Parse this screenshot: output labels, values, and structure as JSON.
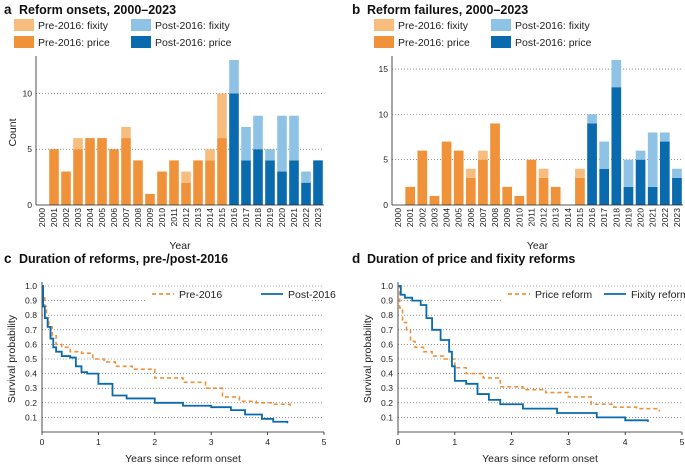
{
  "chart_data": [
    {
      "panel_label": "a",
      "type": "bar",
      "stacked": true,
      "title": "Reform onsets, 2000–2023",
      "xlabel": "Year",
      "ylabel": "Count",
      "ylim": [
        0,
        13
      ],
      "yticks": [
        0,
        5,
        10
      ],
      "grid": true,
      "categories": [
        "2000",
        "2001",
        "2002",
        "2003",
        "2004",
        "2005",
        "2006",
        "2007",
        "2008",
        "2009",
        "2010",
        "2011",
        "2012",
        "2013",
        "2014",
        "2015",
        "2016",
        "2017",
        "2018",
        "2019",
        "2020",
        "2021",
        "2022",
        "2023"
      ],
      "series": [
        {
          "name": "Pre-2016: price",
          "color": "#f0923a",
          "values": [
            0,
            5,
            3,
            5,
            6,
            6,
            5,
            6,
            4,
            1,
            3,
            4,
            2,
            4,
            4,
            6,
            0,
            0,
            0,
            0,
            0,
            0,
            0,
            0
          ]
        },
        {
          "name": "Pre-2016: fixity",
          "color": "#f7bd7f",
          "values": [
            0,
            0,
            0,
            1,
            0,
            0,
            0,
            1,
            0,
            0,
            0,
            0,
            1,
            0,
            1,
            4,
            0,
            0,
            0,
            0,
            0,
            0,
            0,
            0
          ]
        },
        {
          "name": "Post-2016: price",
          "color": "#0a6aae",
          "values": [
            0,
            0,
            0,
            0,
            0,
            0,
            0,
            0,
            0,
            0,
            0,
            0,
            0,
            0,
            0,
            0,
            10,
            4,
            5,
            4,
            3,
            4,
            2,
            4
          ]
        },
        {
          "name": "Post-2016: fixity",
          "color": "#8ec3e6",
          "values": [
            0,
            0,
            0,
            0,
            0,
            0,
            0,
            0,
            0,
            0,
            0,
            0,
            0,
            0,
            0,
            0,
            3,
            3,
            3,
            1,
            5,
            4,
            1,
            0
          ]
        }
      ],
      "legend": [
        "Pre-2016: fixity",
        "Pre-2016: price",
        "Post-2016: fixity",
        "Post-2016: price"
      ]
    },
    {
      "panel_label": "b",
      "type": "bar",
      "stacked": true,
      "title": "Reform failures, 2000–2023",
      "xlabel": "Year",
      "ylabel": "",
      "ylim": [
        0,
        16
      ],
      "yticks": [
        0,
        5,
        10,
        15
      ],
      "grid": true,
      "categories": [
        "2000",
        "2001",
        "2002",
        "2003",
        "2004",
        "2005",
        "2006",
        "2007",
        "2008",
        "2009",
        "2010",
        "2011",
        "2012",
        "2013",
        "2014",
        "2015",
        "2016",
        "2017",
        "2018",
        "2019",
        "2020",
        "2021",
        "2022",
        "2023"
      ],
      "series": [
        {
          "name": "Pre-2016: price",
          "color": "#f0923a",
          "values": [
            0,
            2,
            6,
            1,
            7,
            6,
            3,
            5,
            9,
            2,
            1,
            5,
            3,
            2,
            0,
            3,
            0,
            0,
            0,
            0,
            0,
            0,
            0,
            0
          ]
        },
        {
          "name": "Pre-2016: fixity",
          "color": "#f7bd7f",
          "values": [
            0,
            0,
            0,
            0,
            0,
            0,
            1,
            1,
            0,
            0,
            0,
            0,
            1,
            0,
            0,
            1,
            0,
            0,
            0,
            0,
            0,
            0,
            0,
            0
          ]
        },
        {
          "name": "Post-2016: price",
          "color": "#0a6aae",
          "values": [
            0,
            0,
            0,
            0,
            0,
            0,
            0,
            0,
            0,
            0,
            0,
            0,
            0,
            0,
            0,
            0,
            9,
            4,
            13,
            2,
            5,
            2,
            7,
            3
          ]
        },
        {
          "name": "Post-2016: fixity",
          "color": "#8ec3e6",
          "values": [
            0,
            0,
            0,
            0,
            0,
            0,
            0,
            0,
            0,
            0,
            0,
            0,
            0,
            0,
            0,
            0,
            1,
            3,
            3,
            3,
            1,
            6,
            1,
            1
          ]
        }
      ],
      "legend": [
        "Pre-2016: fixity",
        "Pre-2016: price",
        "Post-2016: fixity",
        "Post-2016: price"
      ]
    },
    {
      "panel_label": "c",
      "type": "line",
      "title": "Duration of reforms, pre-/post-2016",
      "xlabel": "Years since reform onset",
      "ylabel": "Survival probability",
      "xlim": [
        0,
        5
      ],
      "ylim": [
        0,
        1
      ],
      "xticks": [
        0,
        1,
        2,
        3,
        4,
        5
      ],
      "yticks": [
        0.1,
        0.2,
        0.3,
        0.4,
        0.5,
        0.6,
        0.7,
        0.8,
        0.9,
        1.0
      ],
      "ytick_labels": [
        "0.1",
        "0.2",
        "0.3",
        "0.4",
        "0.5",
        "0.6",
        "0.7",
        "0.8",
        "0.9",
        "1.0"
      ],
      "xtick_labels": [
        "0",
        "1",
        "2",
        "3",
        "4",
        "5"
      ],
      "grid": true,
      "series": [
        {
          "name": "Pre-2016",
          "color": "#f0923a",
          "dashed": true,
          "x": [
            0,
            0.02,
            0.05,
            0.08,
            0.12,
            0.18,
            0.25,
            0.35,
            0.5,
            0.7,
            0.9,
            1.1,
            1.3,
            1.6,
            2.0,
            2.5,
            2.9,
            3.2,
            3.5,
            3.8,
            4.1,
            4.4
          ],
          "y": [
            1.0,
            0.92,
            0.86,
            0.78,
            0.72,
            0.66,
            0.6,
            0.58,
            0.55,
            0.54,
            0.5,
            0.48,
            0.45,
            0.43,
            0.37,
            0.34,
            0.3,
            0.24,
            0.21,
            0.2,
            0.19,
            0.18
          ]
        },
        {
          "name": "Post-2016",
          "color": "#0a6aae",
          "dashed": false,
          "x": [
            0,
            0.02,
            0.05,
            0.1,
            0.15,
            0.2,
            0.25,
            0.35,
            0.5,
            0.6,
            0.7,
            0.8,
            1.0,
            1.25,
            1.5,
            2.0,
            2.5,
            3.0,
            3.35,
            3.6,
            3.9,
            4.1,
            4.35
          ],
          "y": [
            1.0,
            0.86,
            0.78,
            0.72,
            0.64,
            0.58,
            0.55,
            0.52,
            0.51,
            0.45,
            0.41,
            0.4,
            0.33,
            0.25,
            0.23,
            0.2,
            0.18,
            0.17,
            0.15,
            0.12,
            0.09,
            0.07,
            0.06
          ]
        }
      ],
      "legend": [
        "Pre-2016",
        "Post-2016"
      ]
    },
    {
      "panel_label": "d",
      "type": "line",
      "title": "Duration of price and fixity reforms",
      "xlabel": "Years since reform onset",
      "ylabel": "Survival probability",
      "xlim": [
        0,
        5
      ],
      "ylim": [
        0,
        1
      ],
      "xticks": [
        0,
        1,
        2,
        3,
        4,
        5
      ],
      "yticks": [
        0.1,
        0.2,
        0.3,
        0.4,
        0.5,
        0.6,
        0.7,
        0.8,
        0.9,
        1.0
      ],
      "ytick_labels": [
        "0.1",
        "0.2",
        "0.3",
        "0.4",
        "0.5",
        "0.6",
        "0.7",
        "0.8",
        "0.9",
        "1.0"
      ],
      "xtick_labels": [
        "0",
        "1",
        "2",
        "3",
        "4",
        "5"
      ],
      "grid": true,
      "series": [
        {
          "name": "Price reform",
          "color": "#f0923a",
          "dashed": true,
          "x": [
            0,
            0.03,
            0.08,
            0.15,
            0.22,
            0.3,
            0.45,
            0.6,
            0.8,
            1.0,
            1.2,
            1.5,
            1.8,
            2.2,
            2.6,
            3.0,
            3.4,
            3.8,
            4.2,
            4.6
          ],
          "y": [
            1.0,
            0.85,
            0.75,
            0.7,
            0.62,
            0.58,
            0.55,
            0.52,
            0.5,
            0.44,
            0.4,
            0.37,
            0.31,
            0.29,
            0.27,
            0.24,
            0.19,
            0.17,
            0.16,
            0.14
          ]
        },
        {
          "name": "Fixity reform",
          "color": "#0a6aae",
          "dashed": false,
          "x": [
            0,
            0.05,
            0.12,
            0.25,
            0.4,
            0.5,
            0.6,
            0.75,
            0.9,
            0.95,
            1.0,
            1.2,
            1.4,
            1.6,
            1.8,
            2.2,
            2.8,
            3.5,
            4.0,
            4.4
          ],
          "y": [
            1.0,
            0.94,
            0.92,
            0.9,
            0.87,
            0.78,
            0.7,
            0.63,
            0.55,
            0.45,
            0.35,
            0.33,
            0.26,
            0.22,
            0.19,
            0.16,
            0.13,
            0.1,
            0.08,
            0.07
          ]
        }
      ],
      "legend": [
        "Price reform",
        "Fixity reform"
      ]
    }
  ]
}
